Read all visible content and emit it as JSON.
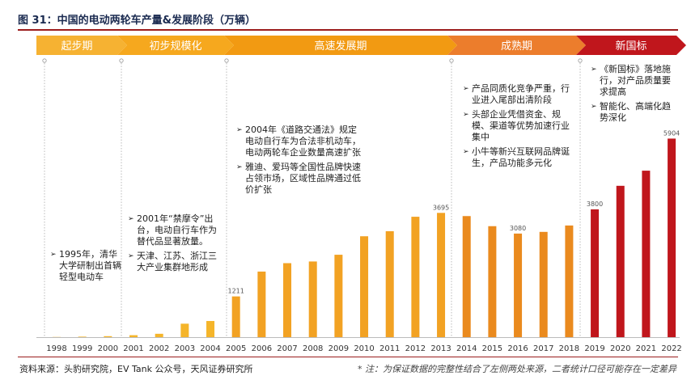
{
  "figure": {
    "title": "图 31：中国的电动两轮车产量&发展阶段（万辆）",
    "source": "资料来源：头豹研究院，EV Tank 公众号，天风证券研究所",
    "note": "* 注：为保证数据的完整性结合了左侧两处来源，二者统计口径可能存在一定差异"
  },
  "stages": [
    {
      "label": "起步期",
      "color": "#f6b232"
    },
    {
      "label": "初步规模化",
      "color": "#f6a81e"
    },
    {
      "label": "高速发展期",
      "color": "#f29a12"
    },
    {
      "label": "成熟期",
      "color": "#ec7d2c"
    },
    {
      "label": "新国标",
      "color": "#c0161c"
    }
  ],
  "annotations": [
    {
      "items": [
        "1995年，清华大学研制出首辆轻型电动车"
      ]
    },
    {
      "items": [
        "2001年“禁摩令”出台，电动自行车作为替代品显著放量。",
        "天津、江苏、浙江三大产业集群地形成"
      ]
    },
    {
      "items": [
        "2004年《道路交通法》规定电动自行车为合法非机动车，电动两轮车企业数量高速扩张",
        "雅迪、爱玛等全国性品牌快速占领市场，区域性品牌通过低价扩张"
      ]
    },
    {
      "items": [
        "产品同质化竞争严重，行业进入尾部出清阶段",
        "头部企业凭借资金、规模、渠道等优势加速行业集中",
        "小牛等新兴互联网品牌诞生，产品功能多元化"
      ]
    },
    {
      "items": [
        "《新国标》落地施行，对产品质量要求提高",
        "智能化、高端化趋势深化"
      ]
    }
  ],
  "chart_data": {
    "type": "bar",
    "title": "中国的电动两轮车产量&发展阶段（万辆）",
    "xlabel": "",
    "ylabel": "万辆",
    "categories": [
      "1998",
      "1999",
      "2000",
      "2001",
      "2002",
      "2003",
      "2004",
      "2005",
      "2006",
      "2007",
      "2008",
      "2009",
      "2010",
      "2011",
      "2012",
      "2013",
      "2014",
      "2015",
      "2016",
      "2017",
      "2018",
      "2019",
      "2020",
      "2021",
      "2022"
    ],
    "values": [
      5,
      15,
      29,
      58,
      100,
      400,
      480,
      1211,
      1950,
      2200,
      2250,
      2450,
      3000,
      3150,
      3580,
      3695,
      3600,
      3300,
      3080,
      3130,
      3320,
      3800,
      4500,
      4950,
      5904
    ],
    "data_labels": {
      "2005": "1211",
      "2013": "3695",
      "2016": "3080",
      "2019": "3800",
      "2022": "5904"
    },
    "colors": {
      "growth": "#f2a223",
      "mature": "#ea8a1e",
      "new_standard": "#c0161c"
    },
    "ylim": [
      0,
      6200
    ]
  }
}
